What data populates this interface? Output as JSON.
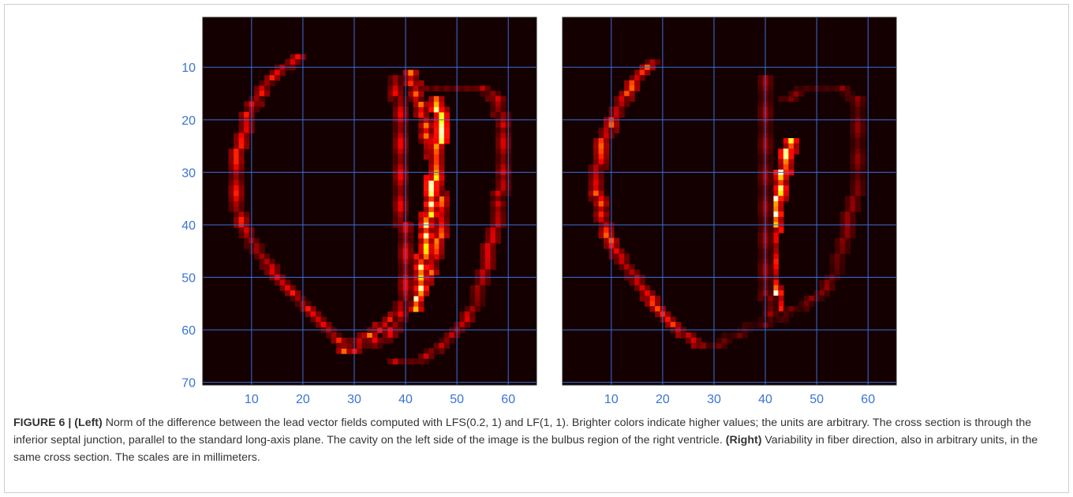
{
  "figure": {
    "colors": {
      "background": "#140000",
      "grid": "#3b6fd8",
      "tick": "#3a74d6"
    },
    "panels": [
      {
        "name": "left",
        "chart_data": {
          "type": "heatmap",
          "title": "",
          "xlabel": "",
          "ylabel": "",
          "xlim": [
            0.5,
            65.5
          ],
          "ylim": [
            70.5,
            0.5
          ],
          "xticks": [
            10,
            20,
            30,
            40,
            50,
            60
          ],
          "yticks": [
            10,
            20,
            30,
            40,
            50,
            60,
            70
          ],
          "xtick_labels": [
            "10",
            "20",
            "30",
            "40",
            "50",
            "60"
          ],
          "ytick_labels": [
            "10",
            "20",
            "30",
            "40",
            "50",
            "60",
            "70"
          ],
          "grid": true,
          "colormap": "hot",
          "features": [
            {
              "path": [
                [
                  19,
                  8
                ],
                [
                  16,
                  10
                ],
                [
                  12,
                  14
                ],
                [
                  9,
                  20
                ],
                [
                  7,
                  28
                ],
                [
                  7,
                  36
                ],
                [
                  9,
                  42
                ],
                [
                  12,
                  46
                ],
                [
                  15,
                  50
                ],
                [
                  19,
                  54
                ],
                [
                  23,
                  58
                ],
                [
                  27,
                  62
                ],
                [
                  30,
                  64
                ]
              ],
              "intensity": 0.45
            },
            {
              "path": [
                [
                  28,
                  64
                ],
                [
                  32,
                  61
                ],
                [
                  37,
                  58
                ],
                [
                  41,
                  55
                ],
                [
                  44,
                  51
                ],
                [
                  46,
                  45
                ],
                [
                  47,
                  38
                ],
                [
                  46,
                  30
                ],
                [
                  44,
                  22
                ],
                [
                  42,
                  15
                ],
                [
                  41,
                  11
                ]
              ],
              "intensity": 0.6
            },
            {
              "path": [
                [
                  42,
                  56
                ],
                [
                  43,
                  50
                ],
                [
                  44,
                  42
                ],
                [
                  45,
                  34
                ],
                [
                  46,
                  27
                ],
                [
                  47,
                  20
                ],
                [
                  46,
                  16
                ]
              ],
              "intensity": 0.95
            },
            {
              "path": [
                [
                  45,
                  14
                ],
                [
                  50,
                  14
                ],
                [
                  55,
                  14
                ],
                [
                  58,
                  16
                ],
                [
                  59,
                  22
                ],
                [
                  59,
                  30
                ],
                [
                  58,
                  38
                ],
                [
                  56,
                  46
                ],
                [
                  54,
                  54
                ],
                [
                  50,
                  60
                ],
                [
                  46,
                  64
                ],
                [
                  42,
                  66
                ],
                [
                  38,
                  66
                ]
              ],
              "intensity": 0.35
            },
            {
              "path": [
                [
                  38,
                  12
                ],
                [
                  39,
                  20
                ],
                [
                  39,
                  28
                ],
                [
                  39,
                  36
                ],
                [
                  40,
                  44
                ],
                [
                  40,
                  52
                ],
                [
                  39,
                  58
                ],
                [
                  36,
                  62
                ],
                [
                  31,
                  63
                ]
              ],
              "intensity": 0.4
            }
          ]
        }
      },
      {
        "name": "right",
        "chart_data": {
          "type": "heatmap",
          "title": "",
          "xlabel": "",
          "ylabel": "",
          "xlim": [
            0.5,
            65.5
          ],
          "ylim": [
            70.5,
            0.5
          ],
          "xticks": [
            10,
            20,
            30,
            40,
            50,
            60
          ],
          "yticks": [
            10,
            20,
            30,
            40,
            50,
            60,
            70
          ],
          "xtick_labels": [
            "10",
            "20",
            "30",
            "40",
            "50",
            "60"
          ],
          "ytick_labels": [],
          "grid": true,
          "colormap": "hot",
          "features": [
            {
              "path": [
                [
                  18,
                  9
                ],
                [
                  14,
                  13
                ],
                [
                  11,
                  18
                ],
                [
                  8,
                  25
                ],
                [
                  7,
                  32
                ],
                [
                  8,
                  38
                ],
                [
                  10,
                  44
                ],
                [
                  13,
                  48
                ],
                [
                  16,
                  52
                ],
                [
                  19,
                  56
                ],
                [
                  23,
                  60
                ],
                [
                  28,
                  63
                ],
                [
                  30,
                  63
                ]
              ],
              "intensity": 0.55
            },
            {
              "path": [
                [
                  45,
                  24
                ],
                [
                  44,
                  28
                ],
                [
                  43,
                  32
                ],
                [
                  42,
                  38
                ],
                [
                  41,
                  44
                ],
                [
                  41,
                  50
                ],
                [
                  42,
                  54
                ],
                [
                  42,
                  58
                ]
              ],
              "intensity": 0.98
            },
            {
              "path": [
                [
                  40,
                  12
                ],
                [
                  40,
                  18
                ],
                [
                  40,
                  26
                ],
                [
                  40,
                  34
                ],
                [
                  40,
                  42
                ],
                [
                  40,
                  50
                ],
                [
                  41,
                  58
                ]
              ],
              "intensity": 0.25
            },
            {
              "path": [
                [
                  44,
                  16
                ],
                [
                  48,
                  14
                ],
                [
                  54,
                  14
                ],
                [
                  58,
                  16
                ],
                [
                  58,
                  24
                ],
                [
                  58,
                  32
                ],
                [
                  56,
                  40
                ],
                [
                  54,
                  48
                ],
                [
                  50,
                  54
                ],
                [
                  46,
                  56
                ],
                [
                  42,
                  58
                ]
              ],
              "intensity": 0.22
            },
            {
              "path": [
                [
                  30,
                  63
                ],
                [
                  34,
                  61
                ],
                [
                  38,
                  59
                ],
                [
                  41,
                  58
                ]
              ],
              "intensity": 0.18
            }
          ]
        }
      }
    ]
  },
  "caption": {
    "label": "FIGURE 6 | ",
    "left_tag": "(Left)",
    "left_text": " Norm of the difference between the lead vector fields computed with LFS(0.2, 1) and LF(1, 1). Brighter colors indicate higher values; the units are arbitrary. The cross section is through the inferior septal junction, parallel to the standard long-axis plane. The cavity on the left side of the image is the bulbus region of the right ventricle. ",
    "right_tag": "(Right)",
    "right_text": " Variability in fiber direction, also in arbitrary units, in the same cross section. The scales are in millimeters."
  }
}
